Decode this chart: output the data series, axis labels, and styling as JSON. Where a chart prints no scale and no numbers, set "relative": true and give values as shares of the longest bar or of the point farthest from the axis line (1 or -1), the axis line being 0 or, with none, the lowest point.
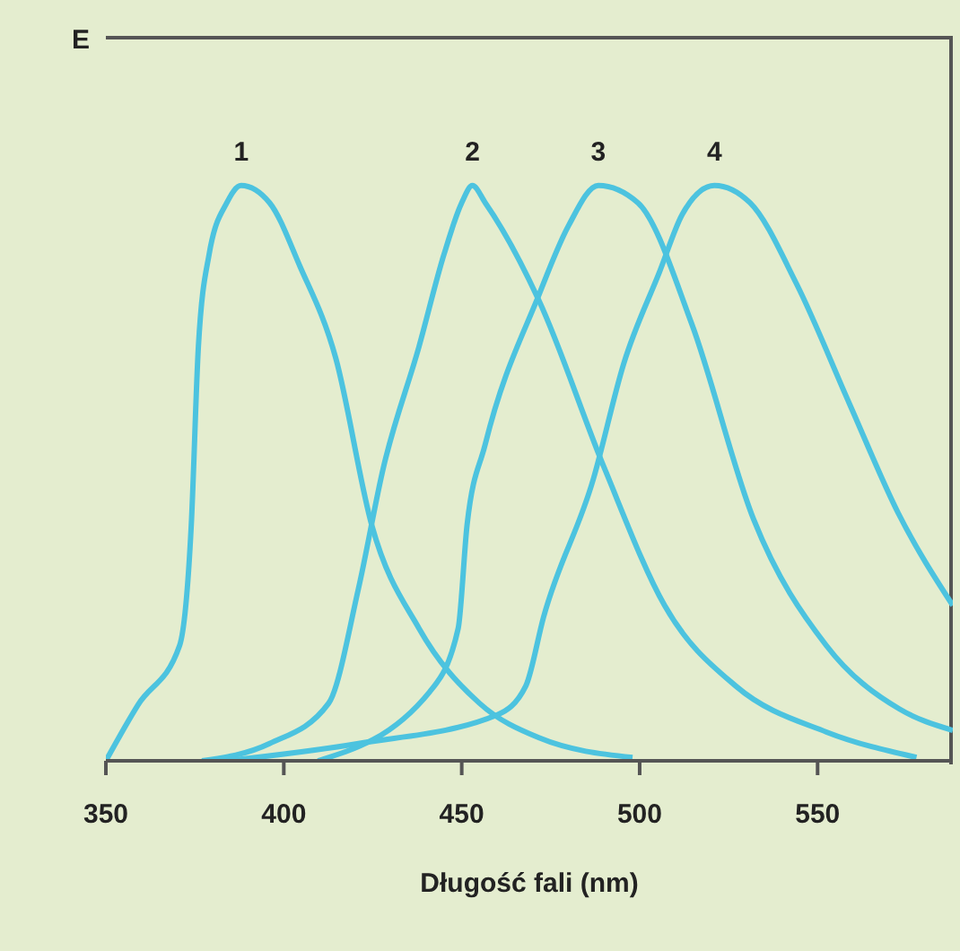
{
  "chart_data": {
    "type": "line",
    "relative": true,
    "ylabel": "E",
    "xlabel": "Długość fali (nm)",
    "xlim": [
      350,
      588
    ],
    "xticks": [
      350,
      400,
      450,
      500,
      550
    ],
    "marker": "none",
    "line_style": "solid",
    "series": [
      {
        "name": "1",
        "color": "#4cc3df",
        "x": [
          350,
          359,
          370.7,
          374,
          376,
          379,
          384,
          388,
          396,
          404.5,
          414.6,
          424.7,
          438,
          455,
          471.7,
          498
        ],
        "values": [
          0,
          0.097,
          0.2,
          0.41,
          0.72,
          0.88,
          0.97,
          1,
          0.97,
          0.86,
          0.7,
          0.41,
          0.23,
          0.1,
          0.04,
          0.006
        ]
      },
      {
        "name": "2",
        "color": "#4cc3df",
        "x": [
          377,
          396,
          412.6,
          421,
          428,
          438,
          445,
          450,
          453,
          456.6,
          471.7,
          490,
          507,
          527,
          552.5,
          577.8
        ],
        "values": [
          0,
          0.03,
          0.1,
          0.3,
          0.51,
          0.72,
          0.88,
          0.97,
          1,
          0.97,
          0.8,
          0.51,
          0.27,
          0.13,
          0.05,
          0.006
        ]
      },
      {
        "name": "3",
        "color": "#4cc3df",
        "x": [
          409.6,
          441,
          449,
          451.5,
          456.6,
          471.7,
          480,
          488.4,
          499.5,
          514.6,
          532,
          552.5,
          573,
          588
        ],
        "values": [
          0,
          0.12,
          0.23,
          0.41,
          0.55,
          0.81,
          0.93,
          1,
          0.97,
          0.76,
          0.42,
          0.2,
          0.09,
          0.053
        ]
      },
      {
        "name": "4",
        "color": "#4cc3df",
        "x": [
          384,
          421,
          460,
          468,
          473,
          487,
          495.5,
          505.6,
          512,
          521,
          531,
          544,
          559,
          572.7,
          588
        ],
        "values": [
          0,
          0.03,
          0.08,
          0.13,
          0.25,
          0.49,
          0.69,
          0.85,
          0.95,
          1,
          0.97,
          0.83,
          0.62,
          0.43,
          0.27
        ]
      }
    ]
  }
}
